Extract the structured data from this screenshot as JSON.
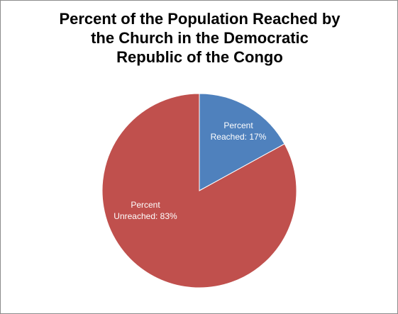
{
  "chart_data": {
    "type": "pie",
    "title_lines": [
      "Percent of the Population Reached by",
      "the Church in the Democratic",
      "Republic of the Congo"
    ],
    "slices": [
      {
        "label_lines": [
          "Percent",
          "Reached:  17%"
        ],
        "value": 17,
        "color": "#4f81bd"
      },
      {
        "label_lines": [
          "Percent",
          "Unreached:  83%"
        ],
        "value": 83,
        "color": "#c0504d"
      }
    ]
  }
}
